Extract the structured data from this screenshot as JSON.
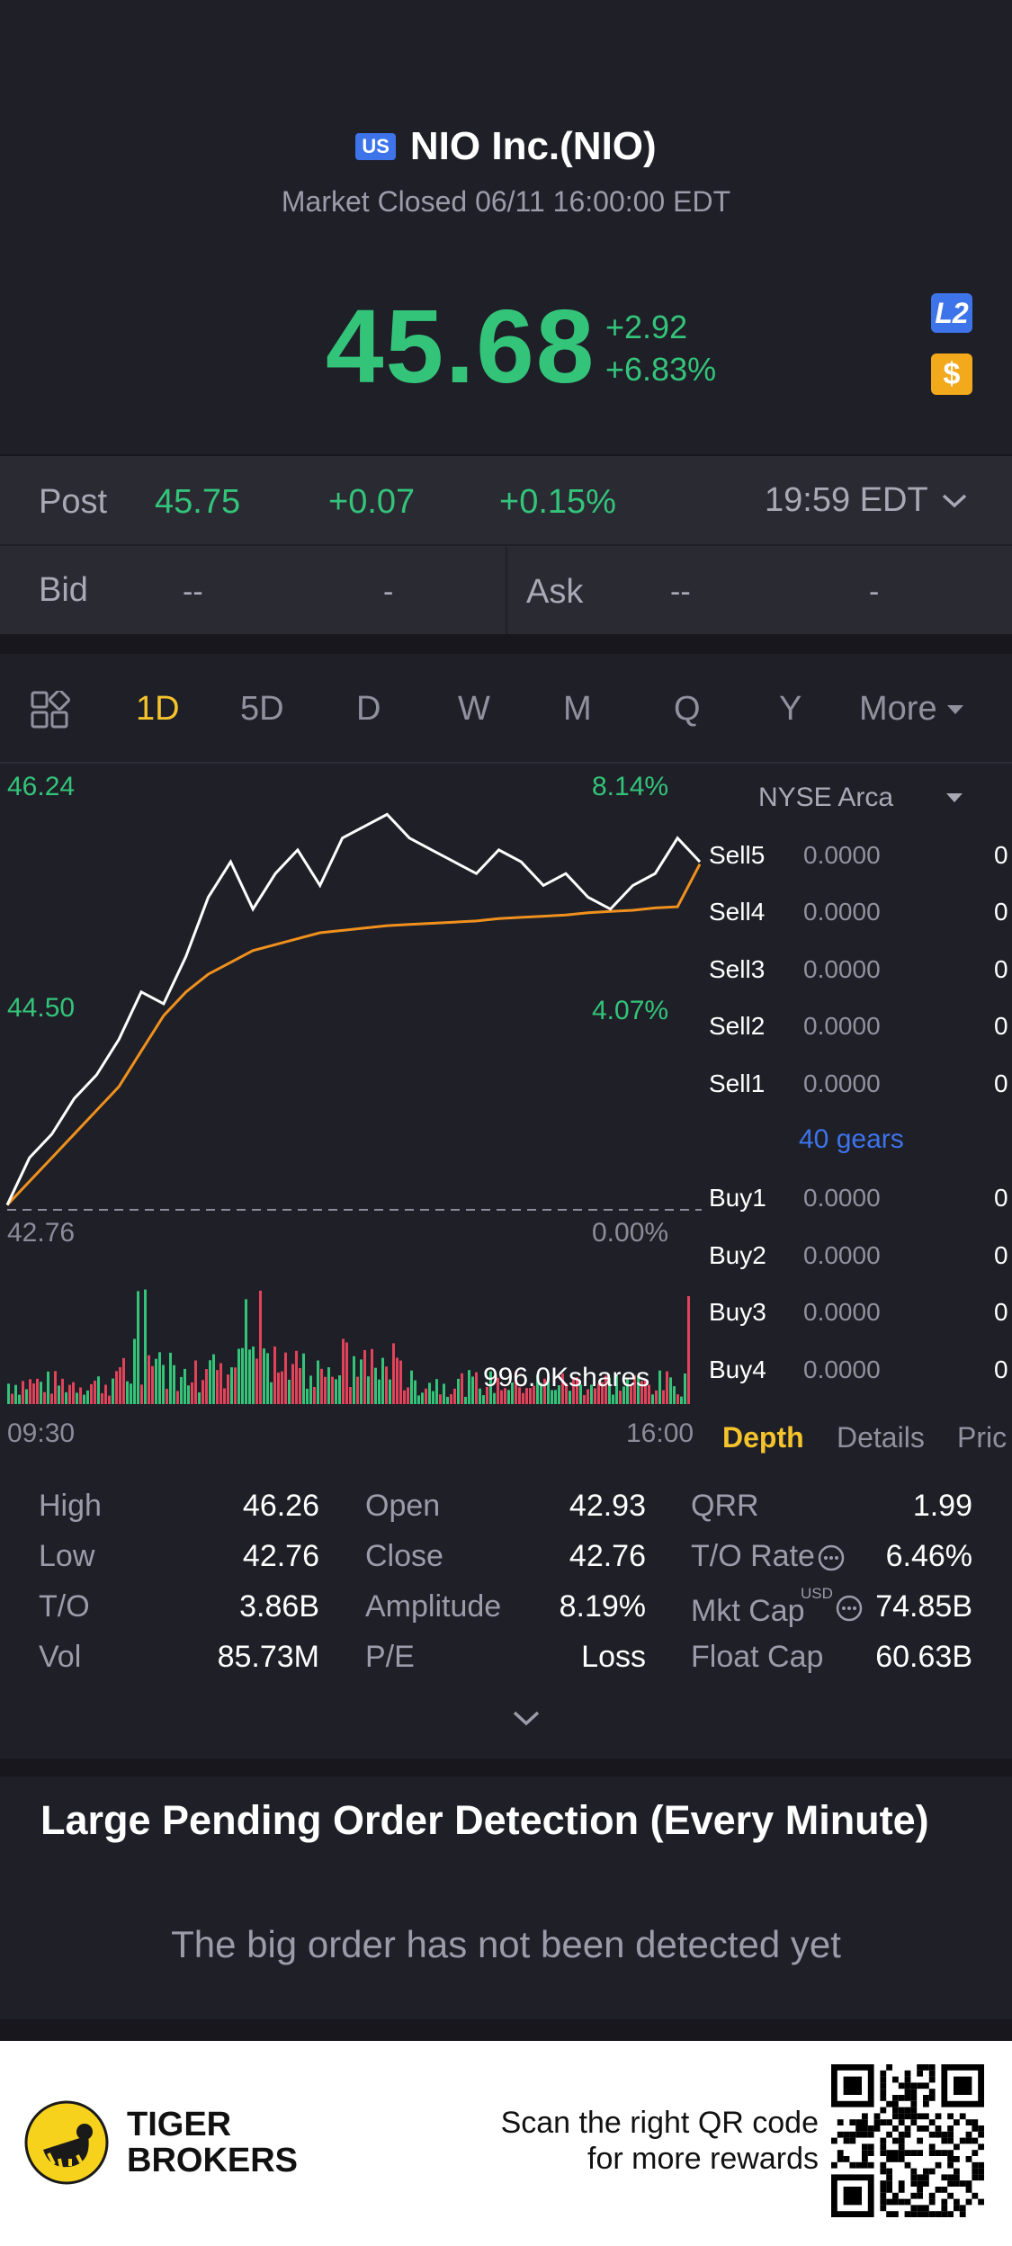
{
  "header": {
    "market_badge": "US",
    "title": "NIO Inc.(NIO)",
    "status": "Market Closed 06/11 16:00:00 EDT",
    "price": "45.68",
    "change_abs": "+2.92",
    "change_pct": "+6.83%",
    "l2_badge": "L2",
    "dollar_badge": "$"
  },
  "post": {
    "label": "Post",
    "price": "45.75",
    "change_abs": "+0.07",
    "change_pct": "+0.15%",
    "time": "19:59 EDT"
  },
  "bid_ask": {
    "bid_label": "Bid",
    "bid_price": "--",
    "bid_size": "-",
    "ask_label": "Ask",
    "ask_price": "--",
    "ask_size": "-"
  },
  "tabs": [
    "1D",
    "5D",
    "D",
    "W",
    "M",
    "Q",
    "Y",
    "More"
  ],
  "active_tab": "1D",
  "chart_labels": {
    "high_price": "46.24",
    "high_pct": "8.14%",
    "mid_price": "44.50",
    "mid_pct": "4.07%",
    "low_price": "42.76",
    "low_pct": "0.00%",
    "volume_label": "996.0Kshares",
    "time_start": "09:30",
    "time_end": "16:00"
  },
  "chart_data": {
    "type": "line",
    "x_range": [
      "09:30",
      "16:00"
    ],
    "ylim": [
      42.76,
      46.24
    ],
    "series": [
      {
        "values": [
          42.8,
          43.2,
          43.4,
          43.7,
          43.9,
          44.2,
          44.6,
          44.5,
          44.9,
          45.4,
          45.7,
          45.3,
          45.6,
          45.8,
          45.5,
          45.9,
          46.0,
          46.1,
          45.9,
          45.8,
          45.7,
          45.6,
          45.8,
          45.7,
          45.5,
          45.6,
          45.4,
          45.3,
          45.5,
          45.6,
          45.9,
          45.7
        ]
      },
      {
        "values": [
          42.8,
          43.0,
          43.2,
          43.4,
          43.6,
          43.8,
          44.1,
          44.4,
          44.6,
          44.75,
          44.85,
          44.95,
          45.0,
          45.05,
          45.1,
          45.12,
          45.14,
          45.16,
          45.17,
          45.18,
          45.19,
          45.2,
          45.22,
          45.23,
          45.24,
          45.25,
          45.27,
          45.28,
          45.29,
          45.31,
          45.32,
          45.68
        ]
      }
    ],
    "colors": {
      "price": "#ffffff",
      "avg": "#f0911e",
      "up": "#33c47a",
      "down": "#e0435a"
    }
  },
  "order_book": {
    "exchange": "NYSE Arca",
    "sells": [
      {
        "label": "Sell5",
        "price": "0.0000",
        "vol": "0"
      },
      {
        "label": "Sell4",
        "price": "0.0000",
        "vol": "0"
      },
      {
        "label": "Sell3",
        "price": "0.0000",
        "vol": "0"
      },
      {
        "label": "Sell2",
        "price": "0.0000",
        "vol": "0"
      },
      {
        "label": "Sell1",
        "price": "0.0000",
        "vol": "0"
      }
    ],
    "gears": "40 gears",
    "buys": [
      {
        "label": "Buy1",
        "price": "0.0000",
        "vol": "0"
      },
      {
        "label": "Buy2",
        "price": "0.0000",
        "vol": "0"
      },
      {
        "label": "Buy3",
        "price": "0.0000",
        "vol": "0"
      },
      {
        "label": "Buy4",
        "price": "0.0000",
        "vol": "0"
      }
    ],
    "tabs": [
      "Depth",
      "Details",
      "Pric"
    ]
  },
  "stats": [
    [
      {
        "label": "High",
        "value": "46.26"
      },
      {
        "label": "Open",
        "value": "42.93"
      },
      {
        "label": "QRR",
        "value": "1.99"
      }
    ],
    [
      {
        "label": "Low",
        "value": "42.76"
      },
      {
        "label": "Close",
        "value": "42.76"
      },
      {
        "label": "T/O Rate",
        "value": "6.46%"
      }
    ],
    [
      {
        "label": "T/O",
        "value": "3.86B"
      },
      {
        "label": "Amplitude",
        "value": "8.19%"
      },
      {
        "label": "Mkt Cap",
        "value": "74.85B"
      }
    ],
    [
      {
        "label": "Vol",
        "value": "85.73M"
      },
      {
        "label": "P/E",
        "value": "Loss"
      },
      {
        "label": "Float Cap",
        "value": "60.63B"
      }
    ]
  ],
  "mkt_cap_currency": "USD",
  "detection": {
    "title": "Large Pending Order Detection (Every Minute)",
    "empty": "The big order has not been detected yet"
  },
  "footer": {
    "brand_line1": "TIGER",
    "brand_line2": "BROKERS",
    "promo_line1": "Scan the right QR code",
    "promo_line2": "for more rewards"
  }
}
